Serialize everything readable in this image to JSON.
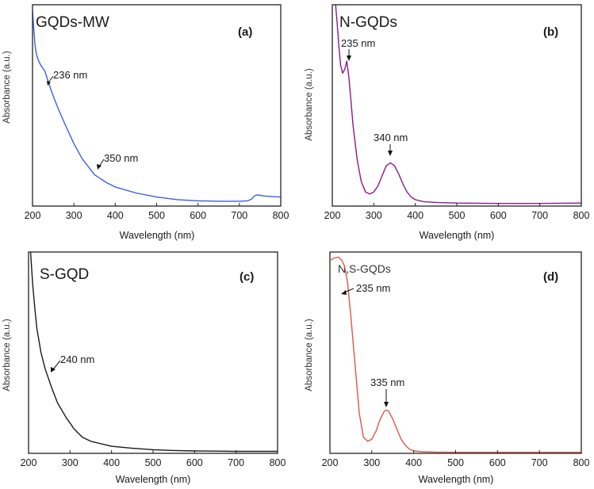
{
  "chart_data": [
    {
      "type": "line",
      "panel": "(a)",
      "title": "GQDs-MW",
      "xlabel": "Wavelength (nm)",
      "ylabel": "Absorbance (a.u.)",
      "xlim": [
        200,
        800
      ],
      "ylim": [
        0,
        1
      ],
      "xticks": [
        200,
        300,
        400,
        500,
        600,
        700,
        800
      ],
      "series": [
        {
          "name": "GQDs-MW",
          "color": "#3d5ee6",
          "x": [
            200,
            203,
            206,
            210,
            215,
            220,
            225,
            230,
            236,
            245,
            255,
            265,
            280,
            300,
            320,
            350,
            380,
            400,
            450,
            500,
            550,
            600,
            650,
            700,
            720,
            730,
            735,
            740,
            745,
            760,
            780,
            800
          ],
          "y": [
            0.97,
            0.88,
            0.8,
            0.75,
            0.72,
            0.7,
            0.685,
            0.67,
            0.63,
            0.575,
            0.52,
            0.47,
            0.4,
            0.31,
            0.235,
            0.155,
            0.115,
            0.095,
            0.065,
            0.045,
            0.032,
            0.026,
            0.024,
            0.024,
            0.026,
            0.035,
            0.048,
            0.054,
            0.055,
            0.05,
            0.047,
            0.045
          ]
        }
      ],
      "annotations": [
        {
          "text": "236 nm",
          "x": 236,
          "y": 0.63
        },
        {
          "text": "350 nm",
          "x": 350,
          "y": 0.155
        }
      ]
    },
    {
      "type": "line",
      "panel": "(b)",
      "title": "N-GQDs",
      "xlabel": "Wavelength (nm)",
      "ylabel": "Absorbance (a.u.)",
      "xlim": [
        200,
        800
      ],
      "ylim": [
        0,
        1
      ],
      "xticks": [
        200,
        300,
        400,
        500,
        600,
        700,
        800
      ],
      "series": [
        {
          "name": "N-GQDs",
          "color": "#8b1a8b",
          "x": [
            208,
            212,
            216,
            220,
            225,
            230,
            235,
            240,
            245,
            250,
            260,
            270,
            280,
            290,
            300,
            310,
            320,
            330,
            340,
            350,
            360,
            370,
            380,
            390,
            400,
            420,
            450,
            500,
            550,
            600,
            650,
            700,
            750,
            800
          ],
          "y": [
            1.0,
            0.9,
            0.79,
            0.7,
            0.66,
            0.68,
            0.72,
            0.64,
            0.52,
            0.4,
            0.23,
            0.12,
            0.07,
            0.06,
            0.07,
            0.1,
            0.15,
            0.2,
            0.215,
            0.2,
            0.16,
            0.11,
            0.07,
            0.045,
            0.032,
            0.022,
            0.018,
            0.015,
            0.014,
            0.013,
            0.013,
            0.013,
            0.014,
            0.015
          ]
        }
      ],
      "annotations": [
        {
          "text": "235 nm",
          "x": 235,
          "y": 0.72
        },
        {
          "text": "340 nm",
          "x": 340,
          "y": 0.215
        }
      ]
    },
    {
      "type": "line",
      "panel": "(c)",
      "title": "S-GQD",
      "xlabel": "Wavelength (nm)",
      "ylabel": "Absorbance (a.u.)",
      "xlim": [
        200,
        800
      ],
      "ylim": [
        0,
        1
      ],
      "xticks": [
        200,
        300,
        400,
        500,
        600,
        700,
        800
      ],
      "series": [
        {
          "name": "S-GQD",
          "color": "#1a1a1a",
          "x": [
            205,
            207,
            210,
            215,
            220,
            230,
            240,
            255,
            270,
            290,
            310,
            330,
            350,
            380,
            400,
            450,
            500,
            550,
            600,
            650,
            700,
            750,
            800
          ],
          "y": [
            1.0,
            0.93,
            0.84,
            0.72,
            0.62,
            0.5,
            0.42,
            0.33,
            0.25,
            0.18,
            0.12,
            0.08,
            0.06,
            0.045,
            0.035,
            0.025,
            0.018,
            0.014,
            0.012,
            0.011,
            0.01,
            0.01,
            0.01
          ]
        }
      ],
      "annotations": [
        {
          "text": "240 nm",
          "x": 240,
          "y": 0.42
        }
      ]
    },
    {
      "type": "line",
      "panel": "(d)",
      "title": "N,S-GQDs",
      "xlabel": "Wavelength (nm)",
      "ylabel": "Absorbance (a.u.)",
      "xlim": [
        200,
        800
      ],
      "ylim": [
        0,
        1
      ],
      "xticks": [
        200,
        300,
        400,
        500,
        600,
        700,
        800
      ],
      "series": [
        {
          "name": "N,S-GQDs",
          "color": "#e0554a",
          "x": [
            202,
            210,
            220,
            228,
            235,
            242,
            250,
            260,
            270,
            280,
            290,
            300,
            310,
            320,
            330,
            335,
            340,
            350,
            360,
            370,
            380,
            390,
            400,
            420,
            450,
            500,
            550,
            600,
            650,
            700,
            750,
            800
          ],
          "y": [
            0.96,
            0.97,
            0.975,
            0.96,
            0.93,
            0.85,
            0.68,
            0.44,
            0.2,
            0.08,
            0.06,
            0.07,
            0.11,
            0.17,
            0.21,
            0.215,
            0.21,
            0.17,
            0.12,
            0.07,
            0.04,
            0.02,
            0.012,
            0.008,
            0.006,
            0.005,
            0.005,
            0.005,
            0.005,
            0.005,
            0.005,
            0.005
          ]
        }
      ],
      "annotations": [
        {
          "text": "235 nm",
          "x": 235,
          "y": 0.975
        },
        {
          "text": "335 nm",
          "x": 335,
          "y": 0.215
        }
      ]
    }
  ]
}
